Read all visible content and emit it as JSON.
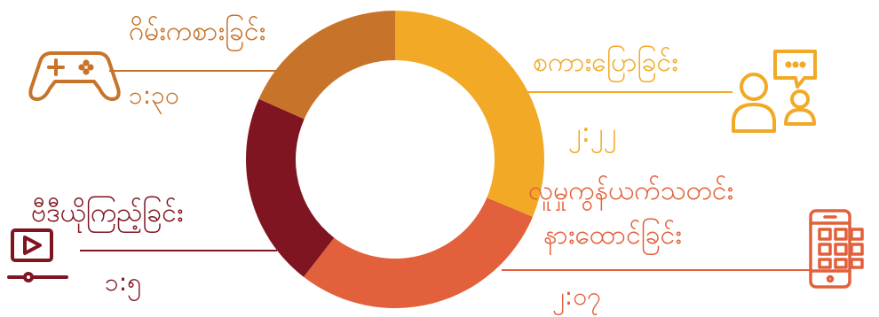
{
  "chart_data": {
    "type": "pie",
    "style": "donut",
    "legend": "none",
    "slices": [
      {
        "label": "စကားပြောခြင်း",
        "value_label": "၂:၂၂",
        "value": 2.22,
        "color": "#F2A925",
        "icon": "chat-user-icon"
      },
      {
        "label": "လူမှုကွန်ယက်သတင်း နားထောင်ခြင်း",
        "label_lines": [
          "လူမှုကွန်ယက်သတင်း",
          "နားထောင်ခြင်း"
        ],
        "value_label": "၂:၀၇",
        "value": 2.07,
        "color": "#E2603B",
        "icon": "mobile-apps-icon"
      },
      {
        "label": "ဗီဒီယိုကြည့်ခြင်း",
        "value_label": "၁:၅",
        "value": 1.5,
        "color": "#7F1520",
        "icon": "video-play-icon"
      },
      {
        "label": "ဂိမ်းကစားခြင်း",
        "value_label": "၁:၃၀",
        "value": 1.3,
        "color": "#C8732A",
        "icon": "gamepad-icon"
      }
    ]
  }
}
